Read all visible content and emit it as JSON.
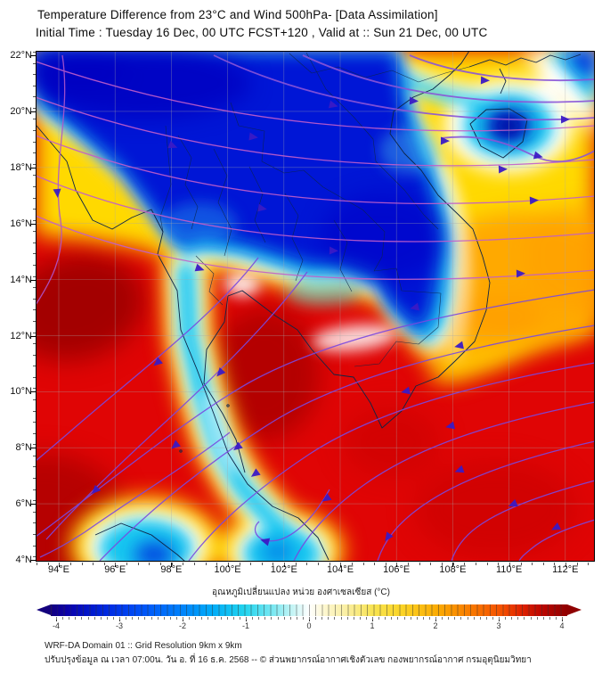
{
  "title": {
    "line1": "Temperature Difference from 23°C and Wind 500hPa- [Data Assimilation]",
    "line2": "Initial Time : Tuesday 16 Dec, 00 UTC FCST+120 , Valid at ::  Sun 21 Dec, 00 UTC"
  },
  "map": {
    "lat_tick_labels": [
      "22°N",
      "20°N",
      "18°N",
      "16°N",
      "14°N",
      "12°N",
      "10°N",
      "8°N",
      "6°N",
      "4°N"
    ],
    "lon_tick_labels": [
      "94°E",
      "96°E",
      "98°E",
      "100°E",
      "102°E",
      "104°E",
      "106°E",
      "108°E",
      "110°E",
      "112°E"
    ]
  },
  "colorbar": {
    "title": "อุณหภูมิเปลี่ยนแปลง หน่วย องศาเซลเซียส (°C)",
    "tick_labels": [
      "-4",
      "-3",
      "-2",
      "-1",
      "0",
      "1",
      "2",
      "3",
      "4"
    ],
    "min": -4,
    "max": 4,
    "gradient": [
      {
        "value": -4,
        "color": "#14007d"
      },
      {
        "value": -3,
        "color": "#001ad0"
      },
      {
        "value": -2,
        "color": "#0080fb"
      },
      {
        "value": -1,
        "color": "#7ae8f2"
      },
      {
        "value": 0,
        "color": "#ffffff"
      },
      {
        "value": 1,
        "color": "#faefa4"
      },
      {
        "value": 2,
        "color": "#fbd426"
      },
      {
        "value": 3,
        "color": "#f44f00"
      },
      {
        "value": 4,
        "color": "#8f0000"
      }
    ]
  },
  "footer": {
    "line1": "WRF-DA Domain 01 :: Grid Resolution 9km x 9km",
    "line2": "ปรับปรุงข้อมูล ณ เวลา 07:00น. วัน อ. ที่ 16 ธ.ค. 2568 -- © ส่วนพยากรณ์อากาศเชิงตัวเลข กองพยากรณ์อากาศ กรมอุตุนิยมวิทยา"
  },
  "colors": {
    "cold_core": "#0313d6",
    "warm_base": "#e00505",
    "stream_north": "#c25fca",
    "stream_south": "#7a49e0",
    "arrow": "#3a1bc6"
  }
}
